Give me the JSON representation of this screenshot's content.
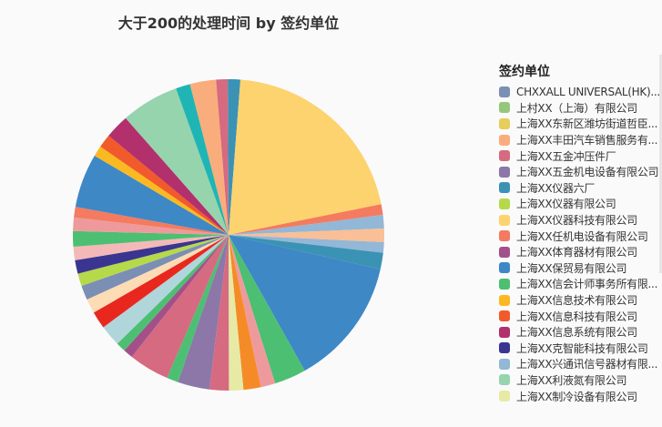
{
  "chart_data": {
    "type": "pie",
    "title": "大于200的处理时间 by 签约单位",
    "legend_title": "签约单位",
    "legend_position": "right",
    "legend": [
      {
        "label": "CHXXALL UNIVERSAL(HK)...",
        "color": "#7b8fb5"
      },
      {
        "label": "上村XX（上海）有限公司",
        "color": "#96c67b"
      },
      {
        "label": "上海XX东新区潍坊街道哲臣...",
        "color": "#e8cc5c"
      },
      {
        "label": "上海XX丰田汽车销售服务有...",
        "color": "#f9ad7c"
      },
      {
        "label": "上海XX五金冲压件厂",
        "color": "#d66a80"
      },
      {
        "label": "上海XX五金机电设备有限公司",
        "color": "#8c77a8"
      },
      {
        "label": "上海XX仪器六厂",
        "color": "#3a93b4"
      },
      {
        "label": "上海XX仪器有限公司",
        "color": "#b6d94a"
      },
      {
        "label": "上海XX仪器科技有限公司",
        "color": "#fdd36f"
      },
      {
        "label": "上海XX任机电设备有限公司",
        "color": "#f47b5f"
      },
      {
        "label": "上海XX体育器材有限公司",
        "color": "#a3508a"
      },
      {
        "label": "上海XX保贸易有限公司",
        "color": "#3e88c6"
      },
      {
        "label": "上海XX信会计师事务所有限...",
        "color": "#4dbf72"
      },
      {
        "label": "上海XX信息技术有限公司",
        "color": "#fbb921"
      },
      {
        "label": "上海XX信息科技有限公司",
        "color": "#f15a2a"
      },
      {
        "label": "上海XX信息系统有限公司",
        "color": "#b2306c"
      },
      {
        "label": "上海XX克智能科技有限公司",
        "color": "#3a3590"
      },
      {
        "label": "上海XX兴通讯信号器材有限...",
        "color": "#93b7d6"
      },
      {
        "label": "上海XX利液氮有限公司",
        "color": "#96d4ae"
      },
      {
        "label": "上海XX制冷设备有限公司",
        "color": "#e6eaa4"
      }
    ],
    "slices_clockwise_from_top": [
      {
        "color": "#3a93b4",
        "pct": 1.3
      },
      {
        "color": "#fdd36f",
        "pct": 20.6
      },
      {
        "color": "#f47b5f",
        "pct": 1.1
      },
      {
        "color": "#93b7d6",
        "pct": 1.4
      },
      {
        "color": "#f9bf96",
        "pct": 1.4
      },
      {
        "color": "#93b7d6",
        "pct": 1.1
      },
      {
        "color": "#3a93b4",
        "pct": 1.7
      },
      {
        "color": "#3e88c6",
        "pct": 13.3
      },
      {
        "color": "#4dbf72",
        "pct": 3.3
      },
      {
        "color": "#ee9a9c",
        "pct": 1.5
      },
      {
        "color": "#f58b27",
        "pct": 1.8
      },
      {
        "color": "#e6eaa4",
        "pct": 1.5
      },
      {
        "color": "#d66a80",
        "pct": 2.0
      },
      {
        "color": "#8c77a8",
        "pct": 3.3
      },
      {
        "color": "#4dbf72",
        "pct": 1.2
      },
      {
        "color": "#d66a80",
        "pct": 4.2
      },
      {
        "color": "#a3508a",
        "pct": 1.0
      },
      {
        "color": "#4dbf72",
        "pct": 1.0
      },
      {
        "color": "#b0d6dc",
        "pct": 2.2
      },
      {
        "color": "#e8281f",
        "pct": 1.8
      },
      {
        "color": "#fddcb5",
        "pct": 1.5
      },
      {
        "color": "#7b8fb5",
        "pct": 1.5
      },
      {
        "color": "#b6d94a",
        "pct": 1.3
      },
      {
        "color": "#3a3590",
        "pct": 1.4
      },
      {
        "color": "#f5b8b8",
        "pct": 1.4
      },
      {
        "color": "#4dbf72",
        "pct": 1.6
      },
      {
        "color": "#ee9a9c",
        "pct": 1.4
      },
      {
        "color": "#f47b5f",
        "pct": 1.1
      },
      {
        "color": "#3e88c6",
        "pct": 5.6
      },
      {
        "color": "#fbb921",
        "pct": 1.1
      },
      {
        "color": "#f15a2a",
        "pct": 1.4
      },
      {
        "color": "#b2306c",
        "pct": 2.5
      },
      {
        "color": "#96d4ae",
        "pct": 6.0
      },
      {
        "color": "#20b5b5",
        "pct": 1.5
      },
      {
        "color": "#f9ad7c",
        "pct": 2.7
      },
      {
        "color": "#d66a80",
        "pct": 1.2
      }
    ]
  }
}
